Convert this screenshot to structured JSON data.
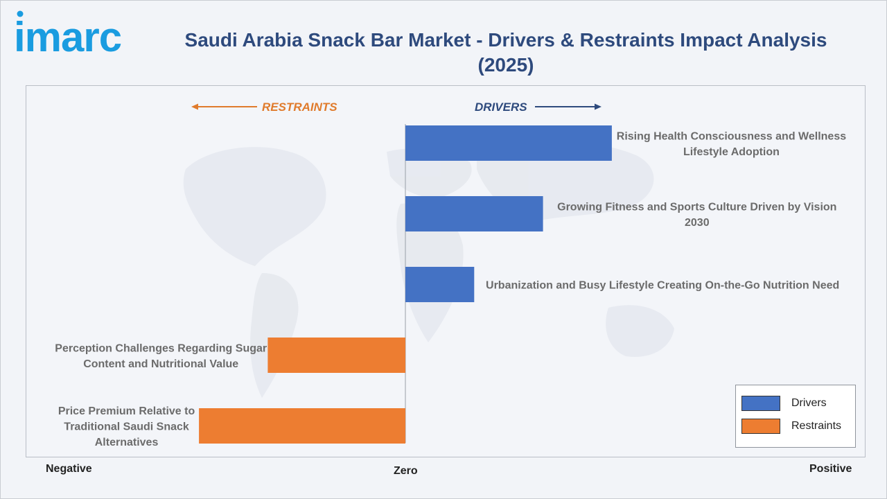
{
  "header": {
    "logo_text": "imarc",
    "title": "Saudi Arabia Snack Bar Market - Drivers & Restraints Impact Analysis (2025)"
  },
  "axis": {
    "negative_label": "Negative",
    "zero_label": "Zero",
    "positive_label": "Positive"
  },
  "direction": {
    "restraints_label": "RESTRAINTS",
    "drivers_label": "DRIVERS"
  },
  "legend": {
    "drivers_label": "Drivers",
    "restraints_label": "Restraints"
  },
  "colors": {
    "drivers": "#4472c4",
    "restraints": "#ed7d31",
    "title": "#2e4a7d",
    "restraints_text": "#e07b2c",
    "drivers_text": "#2e4a7d",
    "logo": "#1a9ce0"
  },
  "chart_data": {
    "type": "bar",
    "orientation": "horizontal",
    "xlim": [
      -3,
      3
    ],
    "categories": [
      "Rising Health Consciousness and Wellness Lifestyle Adoption",
      "Growing Fitness and Sports Culture Driven by Vision 2030",
      "Urbanization and Busy Lifestyle Creating On-the-Go Nutrition Need",
      "Perception Challenges Regarding Sugar Content and Nutritional Value",
      "Price Premium Relative to Traditional Saudi Snack Alternatives"
    ],
    "label_lines": [
      [
        "Rising Health Consciousness and Wellness",
        "Lifestyle Adoption"
      ],
      [
        "Growing Fitness and Sports Culture Driven by Vision",
        "2030"
      ],
      [
        "Urbanization and Busy Lifestyle Creating On-the-Go Nutrition Need"
      ],
      [
        "Perception Challenges Regarding Sugar",
        "Content and Nutritional Value"
      ],
      [
        "Price Premium Relative to",
        "Traditional Saudi Snack",
        "Alternatives"
      ]
    ],
    "values": [
      3,
      2,
      1,
      -2,
      -3
    ],
    "series": [
      {
        "name": "Drivers",
        "indices": [
          0,
          1,
          2
        ]
      },
      {
        "name": "Restraints",
        "indices": [
          3,
          4
        ]
      }
    ]
  }
}
